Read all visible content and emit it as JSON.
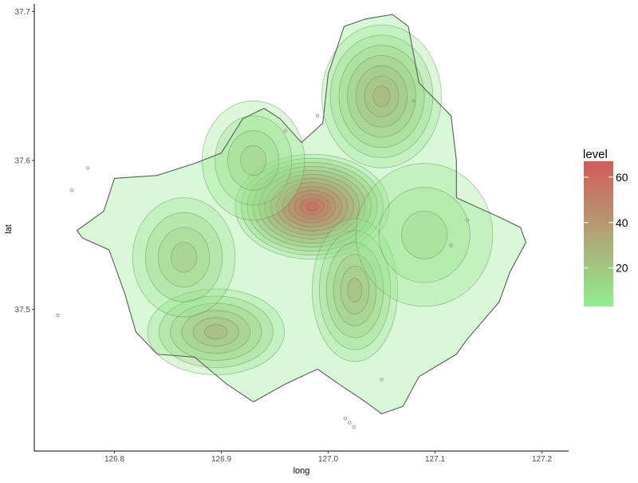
{
  "chart_data": {
    "type": "heatmap",
    "subtype": "2d density contour (filled) over district map",
    "xlabel": "long",
    "ylabel": "lat",
    "xlim": [
      126.725,
      127.225
    ],
    "ylim": [
      37.405,
      37.705
    ],
    "x_ticks": [
      126.8,
      126.9,
      127.0,
      127.1,
      127.2
    ],
    "x_tick_labels": [
      "126.8",
      "126.9",
      "127.0",
      "127.1",
      "127.2"
    ],
    "y_ticks": [
      37.5,
      37.6,
      37.7
    ],
    "y_tick_labels": [
      "37.5",
      "37.6",
      "37.7"
    ],
    "grid": false,
    "legend": {
      "title": "level",
      "position": "right",
      "ticks": [
        20,
        40,
        60
      ],
      "tick_labels": [
        "20",
        "40",
        "60"
      ],
      "range": [
        3,
        67
      ],
      "colors": {
        "low": "#90ee90",
        "high": "#d25a5a"
      }
    },
    "outline_color": "#555555",
    "density_peaks": [
      {
        "long": 126.985,
        "lat": 37.569,
        "level": 66,
        "spread_long": 0.045,
        "spread_lat": 0.022
      },
      {
        "long": 127.05,
        "lat": 37.643,
        "level": 33,
        "spread_long": 0.035,
        "spread_lat": 0.03
      },
      {
        "long": 126.895,
        "lat": 37.485,
        "level": 32,
        "spread_long": 0.04,
        "spread_lat": 0.018
      },
      {
        "long": 127.025,
        "lat": 37.513,
        "level": 30,
        "spread_long": 0.025,
        "spread_lat": 0.03
      },
      {
        "long": 126.865,
        "lat": 37.535,
        "level": 22,
        "spread_long": 0.03,
        "spread_lat": 0.025
      },
      {
        "long": 126.93,
        "lat": 37.6,
        "level": 18,
        "spread_long": 0.03,
        "spread_lat": 0.025
      },
      {
        "long": 127.09,
        "lat": 37.55,
        "level": 15,
        "spread_long": 0.04,
        "spread_lat": 0.03
      }
    ],
    "outline": [
      [
        126.765,
        37.553
      ],
      [
        126.79,
        37.566
      ],
      [
        126.8,
        37.588
      ],
      [
        126.84,
        37.59
      ],
      [
        126.875,
        37.598
      ],
      [
        126.9,
        37.605
      ],
      [
        126.92,
        37.628
      ],
      [
        126.94,
        37.635
      ],
      [
        126.955,
        37.628
      ],
      [
        126.975,
        37.612
      ],
      [
        126.995,
        37.625
      ],
      [
        127.0,
        37.658
      ],
      [
        127.015,
        37.69
      ],
      [
        127.035,
        37.695
      ],
      [
        127.06,
        37.698
      ],
      [
        127.075,
        37.69
      ],
      [
        127.085,
        37.652
      ],
      [
        127.115,
        37.63
      ],
      [
        127.12,
        37.6
      ],
      [
        127.12,
        37.575
      ],
      [
        127.16,
        37.562
      ],
      [
        127.18,
        37.555
      ],
      [
        127.185,
        37.545
      ],
      [
        127.17,
        37.525
      ],
      [
        127.16,
        37.505
      ],
      [
        127.13,
        37.48
      ],
      [
        127.12,
        37.47
      ],
      [
        127.085,
        37.455
      ],
      [
        127.07,
        37.435
      ],
      [
        127.05,
        37.43
      ],
      [
        127.035,
        37.438
      ],
      [
        127.01,
        37.45
      ],
      [
        126.99,
        37.46
      ],
      [
        126.96,
        37.45
      ],
      [
        126.93,
        37.438
      ],
      [
        126.905,
        37.45
      ],
      [
        126.875,
        37.468
      ],
      [
        126.84,
        37.47
      ],
      [
        126.82,
        37.485
      ],
      [
        126.81,
        37.51
      ],
      [
        126.795,
        37.54
      ],
      [
        126.77,
        37.548
      ]
    ],
    "outlier_points": [
      [
        126.747,
        37.496
      ],
      [
        127.016,
        37.427
      ],
      [
        127.02,
        37.424
      ],
      [
        127.024,
        37.421
      ],
      [
        127.05,
        37.453
      ],
      [
        127.115,
        37.543
      ],
      [
        127.13,
        37.56
      ],
      [
        126.76,
        37.58
      ],
      [
        126.775,
        37.595
      ],
      [
        126.96,
        37.62
      ],
      [
        127.08,
        37.64
      ],
      [
        126.99,
        37.63
      ]
    ]
  }
}
